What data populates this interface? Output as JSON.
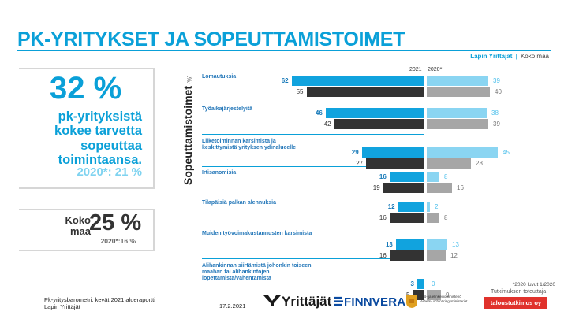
{
  "page": {
    "title": "PK-YRITYKSET JA SOPEUTTAMISTOIMET",
    "region_left": "Lapin Yrittäjät",
    "region_sep": "|",
    "region_right": "Koko maa"
  },
  "kpi": {
    "big": "32 %",
    "text": "pk-yrityksistä kokee tarvetta sopeuttaa toimintaansa.",
    "comparison": "2020*: 21 %"
  },
  "koko_maa": {
    "label": "Koko maa",
    "value": "25 %",
    "comparison": "2020*:16 %"
  },
  "footer": {
    "line1": "Pk-yritysbarometri, kevät 2021 alueraportti",
    "line2": "Lapin Yrittäjät",
    "date": "17.2.2021",
    "note": "*2020 luvut 1/2020",
    "logo_yrittajat": "Yrittäjät",
    "logo_finnvera": "FINNVERA",
    "logo_tem_line1": "Työ- ja elinkeinoministeriö",
    "logo_tem_line2": "Arbets- och näringsministeriet",
    "credit": "Tutkimuksen toteuttaja",
    "credit_badge": "taloustutkimus oy"
  },
  "colors": {
    "accent": "#0aa0d8",
    "lapland_2021": "#11a3de",
    "koko_2021": "#333333",
    "lapland_2020": "#8ad5f2",
    "koko_2020": "#a6a6a6"
  },
  "chart_data": {
    "type": "bar",
    "orientation": "horizontal",
    "ylabel": "Sopeuttamistoimet",
    "unit": "(%)",
    "panels": [
      "2021",
      "2020*"
    ],
    "categories": [
      "Lomautuksia",
      "Työaikajärjestelyitä",
      "Liiketoiminnan karsimista ja keskittymistä yrityksen ydinalueelle",
      "Irtisanomisia",
      "Tilapäisiä palkan alennuksia",
      "Muiden työvoimakustannusten karsimista",
      "Alihankinnan siirtämistä johonkin toiseen maahan tai alihankintojen lopettamista/vähentämistä"
    ],
    "series": [
      {
        "name": "Lapin Yrittäjät",
        "panel": "2021",
        "values": [
          62,
          46,
          29,
          16,
          12,
          13,
          3
        ]
      },
      {
        "name": "Koko maa",
        "panel": "2021",
        "values": [
          55,
          42,
          27,
          19,
          16,
          16,
          5
        ]
      },
      {
        "name": "Lapin Yrittäjät",
        "panel": "2020*",
        "values": [
          39,
          38,
          45,
          8,
          2,
          13,
          0
        ]
      },
      {
        "name": "Koko maa",
        "panel": "2020*",
        "values": [
          40,
          39,
          28,
          16,
          8,
          12,
          9
        ]
      }
    ]
  }
}
